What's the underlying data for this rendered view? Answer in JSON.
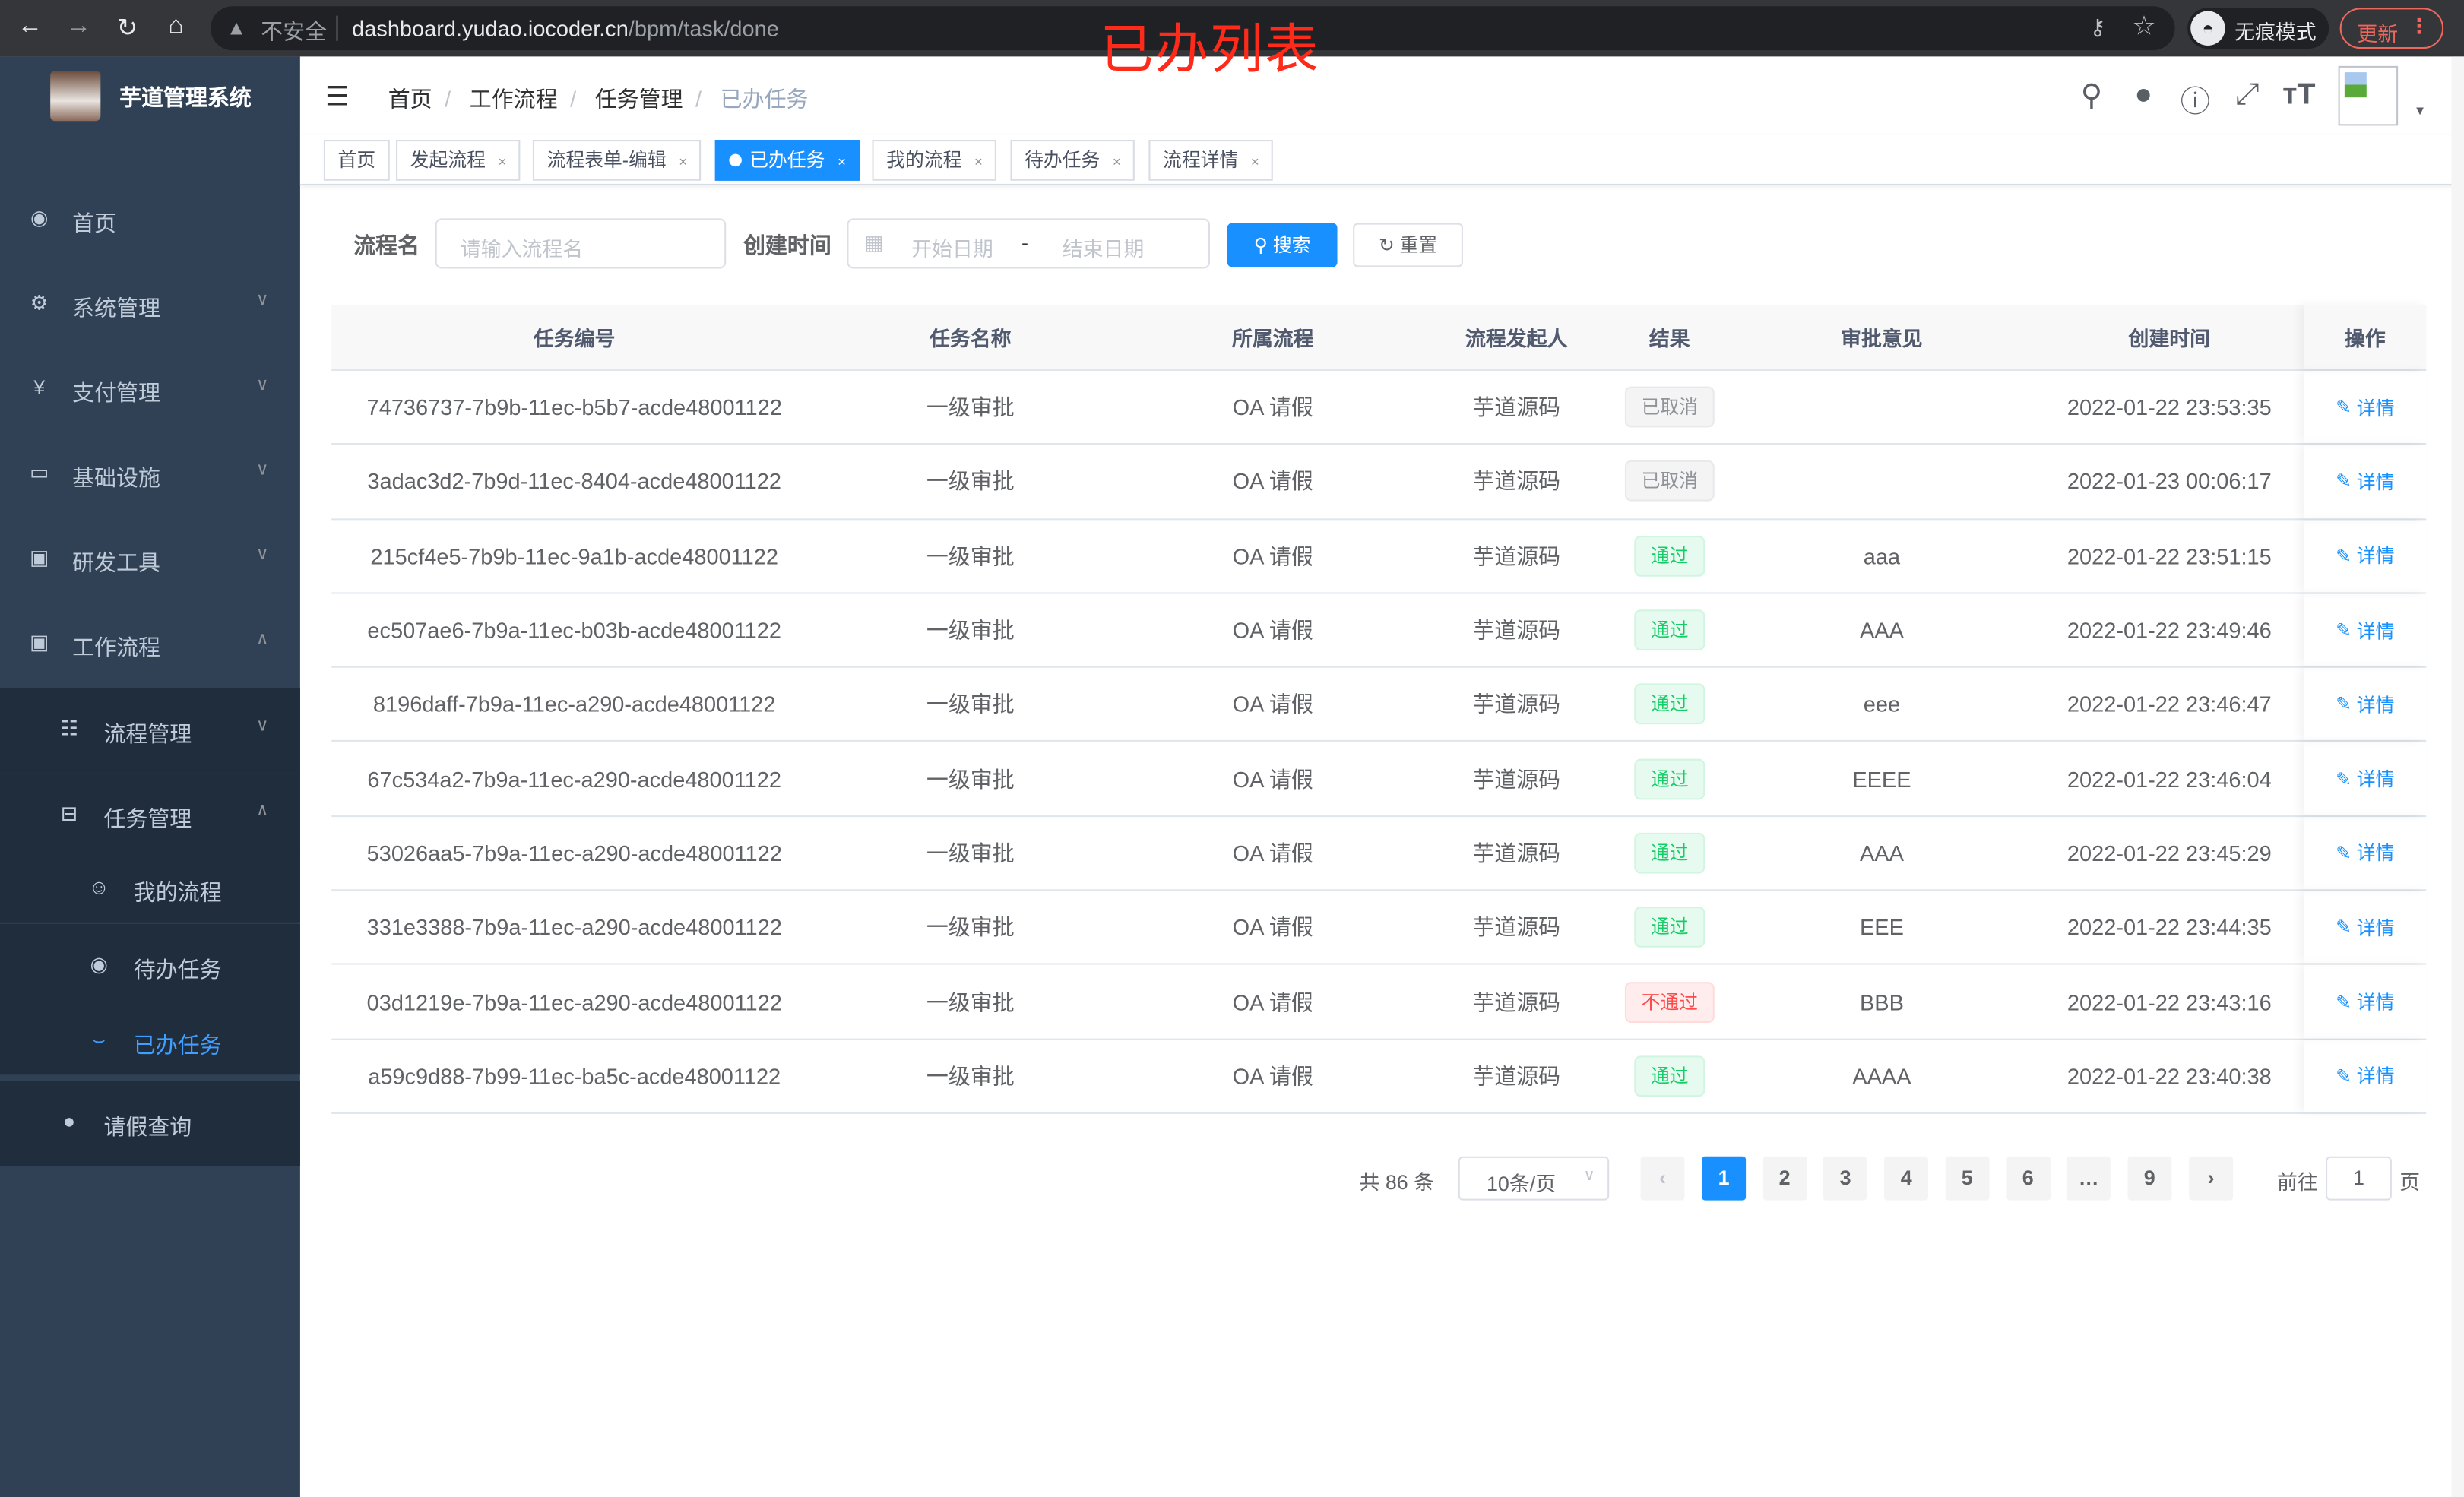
{
  "browser": {
    "insecure_label": "不安全",
    "url_host": "dashboard.yudao.iocoder.cn",
    "url_path": "/bpm/task/done",
    "incognito_label": "无痕模式",
    "update_label": "更新"
  },
  "overlay_title": "已办列表",
  "sidebar": {
    "app_title": "芋道管理系统",
    "items": [
      {
        "label": "首页",
        "icon": "dashboard-icon"
      },
      {
        "label": "系统管理",
        "icon": "gear-icon"
      },
      {
        "label": "支付管理",
        "icon": "yen-icon"
      },
      {
        "label": "基础设施",
        "icon": "monitor-icon"
      },
      {
        "label": "研发工具",
        "icon": "toolbox-icon"
      },
      {
        "label": "工作流程",
        "icon": "toolbox-icon"
      },
      {
        "label": "流程管理",
        "icon": "list-tree-icon"
      },
      {
        "label": "任务管理",
        "icon": "task-icon"
      },
      {
        "label": "我的流程",
        "icon": "people-icon"
      },
      {
        "label": "待办任务",
        "icon": "eye-icon"
      },
      {
        "label": "已办任务",
        "icon": "eye-closed-icon"
      },
      {
        "label": "请假查询",
        "icon": "user-icon"
      }
    ]
  },
  "breadcrumb": [
    "首页",
    "工作流程",
    "任务管理",
    "已办任务"
  ],
  "tags": [
    "首页",
    "发起流程",
    "流程表单-编辑",
    "已办任务",
    "我的流程",
    "待办任务",
    "流程详情"
  ],
  "filters": {
    "name_label": "流程名",
    "name_placeholder": "请输入流程名",
    "time_label": "创建时间",
    "start_placeholder": "开始日期",
    "range_sep": "-",
    "end_placeholder": "结束日期",
    "search_label": "搜索",
    "reset_label": "重置"
  },
  "table": {
    "columns": [
      "任务编号",
      "任务名称",
      "所属流程",
      "流程发起人",
      "结果",
      "审批意见",
      "创建时间",
      "操作"
    ],
    "detail_label": "详情",
    "rows": [
      {
        "id": "74736737-7b9b-11ec-b5b7-acde48001122",
        "name": "一级审批",
        "process": "OA 请假",
        "starter": "芋道源码",
        "result": "已取消",
        "status": "cancel",
        "comment": "",
        "time": "2022-01-22 23:53:35"
      },
      {
        "id": "3adac3d2-7b9d-11ec-8404-acde48001122",
        "name": "一级审批",
        "process": "OA 请假",
        "starter": "芋道源码",
        "result": "已取消",
        "status": "cancel",
        "comment": "",
        "time": "2022-01-23 00:06:17"
      },
      {
        "id": "215cf4e5-7b9b-11ec-9a1b-acde48001122",
        "name": "一级审批",
        "process": "OA 请假",
        "starter": "芋道源码",
        "result": "通过",
        "status": "pass",
        "comment": "aaa",
        "time": "2022-01-22 23:51:15"
      },
      {
        "id": "ec507ae6-7b9a-11ec-b03b-acde48001122",
        "name": "一级审批",
        "process": "OA 请假",
        "starter": "芋道源码",
        "result": "通过",
        "status": "pass",
        "comment": "AAA",
        "time": "2022-01-22 23:49:46"
      },
      {
        "id": "8196daff-7b9a-11ec-a290-acde48001122",
        "name": "一级审批",
        "process": "OA 请假",
        "starter": "芋道源码",
        "result": "通过",
        "status": "pass",
        "comment": "eee",
        "time": "2022-01-22 23:46:47"
      },
      {
        "id": "67c534a2-7b9a-11ec-a290-acde48001122",
        "name": "一级审批",
        "process": "OA 请假",
        "starter": "芋道源码",
        "result": "通过",
        "status": "pass",
        "comment": "EEEE",
        "time": "2022-01-22 23:46:04"
      },
      {
        "id": "53026aa5-7b9a-11ec-a290-acde48001122",
        "name": "一级审批",
        "process": "OA 请假",
        "starter": "芋道源码",
        "result": "通过",
        "status": "pass",
        "comment": "AAA",
        "time": "2022-01-22 23:45:29"
      },
      {
        "id": "331e3388-7b9a-11ec-a290-acde48001122",
        "name": "一级审批",
        "process": "OA 请假",
        "starter": "芋道源码",
        "result": "通过",
        "status": "pass",
        "comment": "EEE",
        "time": "2022-01-22 23:44:35"
      },
      {
        "id": "03d1219e-7b9a-11ec-a290-acde48001122",
        "name": "一级审批",
        "process": "OA 请假",
        "starter": "芋道源码",
        "result": "不通过",
        "status": "reject",
        "comment": "BBB",
        "time": "2022-01-22 23:43:16"
      },
      {
        "id": "a59c9d88-7b99-11ec-ba5c-acde48001122",
        "name": "一级审批",
        "process": "OA 请假",
        "starter": "芋道源码",
        "result": "通过",
        "status": "pass",
        "comment": "AAAA",
        "time": "2022-01-22 23:40:38"
      }
    ]
  },
  "pagination": {
    "total_label": "共 86 条",
    "page_size": "10条/页",
    "pages": [
      "1",
      "2",
      "3",
      "4",
      "5",
      "6",
      "…",
      "9"
    ],
    "current": "1",
    "goto_label": "前往",
    "goto_value": "1",
    "page_suffix": "页"
  },
  "colors": {
    "sidebar_bg": "#304156",
    "submenu_bg": "#1f2d3d",
    "primary": "#1890ff",
    "pass": "#13ce66",
    "reject": "#ff4949",
    "cancel": "#909399"
  }
}
